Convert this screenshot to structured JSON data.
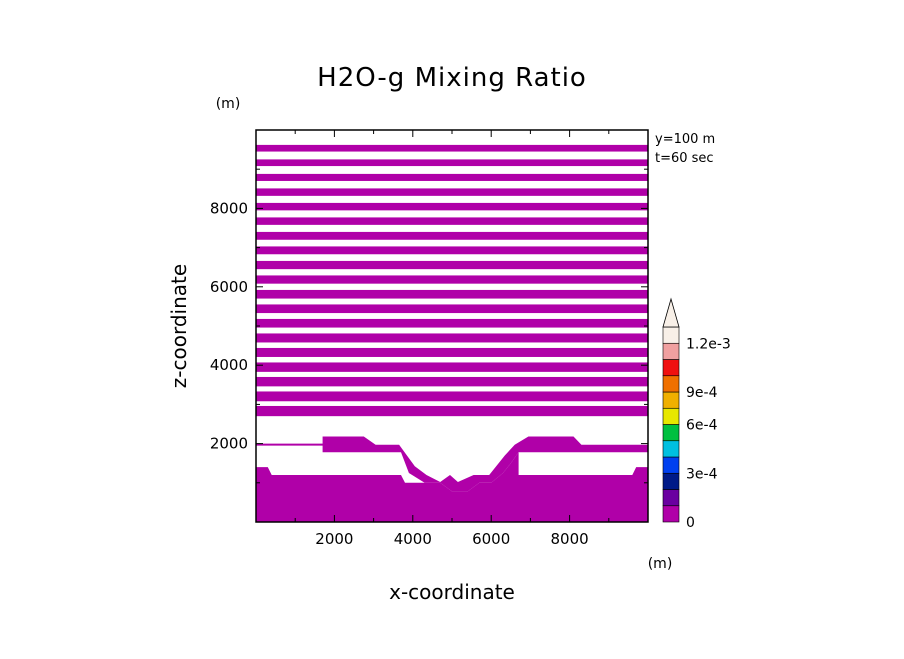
{
  "chart_data": {
    "type": "heatmap",
    "title": "H2O-g Mixing Ratio",
    "xlabel": "x-coordinate",
    "ylabel": "z-coordinate",
    "x_unit": "(m)",
    "y_unit": "(m)",
    "xlim": [
      0,
      10000
    ],
    "ylim": [
      0,
      10000
    ],
    "x_ticks": [
      2000,
      4000,
      6000,
      8000
    ],
    "y_ticks": [
      2000,
      4000,
      6000,
      8000
    ],
    "annotations": [
      "y=100 m",
      "t=60 sec"
    ],
    "fill_color": "#b000a8",
    "colorbar": {
      "levels": [
        "#b000a8",
        "#6a00a0",
        "#001a88",
        "#0040f0",
        "#00c0e0",
        "#00c040",
        "#e8e800",
        "#f0b000",
        "#f07000",
        "#f01010",
        "#f0a0a0",
        "#f8f0e8"
      ],
      "labeled_ticks": [
        {
          "value": 0,
          "label": "0"
        },
        {
          "value": 0.0003,
          "label": "3e-4"
        },
        {
          "value": 0.0006,
          "label": "6e-4"
        },
        {
          "value": 0.0009,
          "label": "9e-4"
        },
        {
          "value": 0.0012,
          "label": "1.2e-3"
        }
      ],
      "max_level": 0.0012,
      "extend": "max"
    },
    "upper_bands_z": [
      [
        9450,
        9620
      ],
      [
        9080,
        9250
      ],
      [
        8700,
        8880
      ],
      [
        8320,
        8510
      ],
      [
        7950,
        8140
      ],
      [
        7580,
        7770
      ],
      [
        7200,
        7400
      ],
      [
        6830,
        7030
      ],
      [
        6450,
        6660
      ],
      [
        6080,
        6290
      ],
      [
        5700,
        5920
      ],
      [
        5330,
        5550
      ],
      [
        4960,
        5180
      ],
      [
        4580,
        4810
      ],
      [
        4210,
        4440
      ],
      [
        3830,
        4070
      ],
      [
        3460,
        3700
      ],
      [
        3080,
        3330
      ],
      [
        2700,
        2960
      ]
    ],
    "lower_region_polygons": [
      [
        [
          0,
          1780
        ],
        [
          1700,
          1780
        ],
        [
          1700,
          2180
        ],
        [
          2750,
          2180
        ],
        [
          3050,
          1970
        ],
        [
          3650,
          1970
        ],
        [
          4050,
          1420
        ],
        [
          4350,
          1200
        ],
        [
          4700,
          1020
        ],
        [
          4950,
          1200
        ],
        [
          5150,
          1020
        ],
        [
          5550,
          1200
        ],
        [
          5950,
          1200
        ],
        [
          6350,
          1700
        ],
        [
          6600,
          1970
        ],
        [
          6950,
          2180
        ],
        [
          8100,
          2180
        ],
        [
          8300,
          1970
        ],
        [
          10000,
          1970
        ],
        [
          10000,
          1780
        ],
        [
          8700,
          1780
        ],
        [
          6700,
          1780
        ],
        [
          6500,
          1500
        ],
        [
          6300,
          1250
        ],
        [
          6000,
          1000
        ],
        [
          5700,
          1000
        ],
        [
          5400,
          780
        ],
        [
          5000,
          780
        ],
        [
          4700,
          1000
        ],
        [
          4300,
          1000
        ],
        [
          3900,
          1250
        ],
        [
          3700,
          1780
        ],
        [
          0,
          1780
        ]
      ],
      [
        [
          0,
          1400
        ],
        [
          300,
          1400
        ],
        [
          400,
          1200
        ],
        [
          3700,
          1200
        ],
        [
          3800,
          1000
        ],
        [
          4700,
          1000
        ],
        [
          5000,
          780
        ],
        [
          5400,
          780
        ],
        [
          5700,
          1000
        ],
        [
          6000,
          1000
        ],
        [
          6300,
          1250
        ],
        [
          6500,
          1500
        ],
        [
          6700,
          1780
        ],
        [
          6700,
          1200
        ],
        [
          9600,
          1200
        ],
        [
          9700,
          1400
        ],
        [
          10000,
          1400
        ],
        [
          10000,
          0
        ],
        [
          0,
          0
        ]
      ],
      [
        [
          0,
          2000
        ],
        [
          0,
          1950
        ],
        [
          3000,
          1950
        ],
        [
          3000,
          2000
        ]
      ]
    ]
  }
}
